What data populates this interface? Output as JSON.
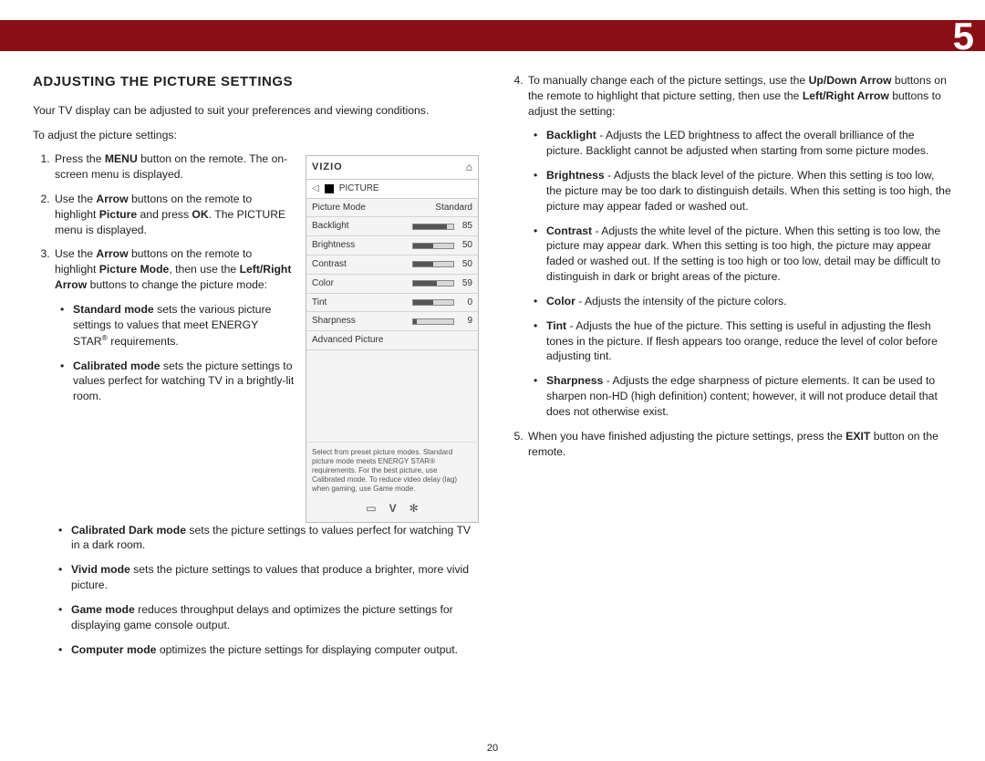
{
  "banner": {
    "chapter_number": "5",
    "background_color": "#8a0f14"
  },
  "page_number": "20",
  "heading": "ADJUSTING THE PICTURE SETTINGS",
  "intro": "Your TV display can be adjusted to suit your preferences and viewing conditions.",
  "lead_in": "To adjust the picture settings:",
  "steps_left": [
    {
      "pre": "Press the ",
      "bold1": "MENU",
      "post": " button on the remote. The on-screen menu is displayed."
    },
    {
      "pre": "Use the ",
      "bold1": "Arrow",
      "mid1": " buttons on the remote to highlight ",
      "bold2": "Picture",
      "mid2": " and press ",
      "bold3": "OK",
      "post": ". The PICTURE menu is displayed."
    },
    {
      "pre": "Use the ",
      "bold1": "Arrow",
      "mid1": " buttons on the remote to highlight ",
      "bold2": "Picture Mode",
      "mid2": ", then use the ",
      "bold3": "Left/Right Arrow",
      "post": " buttons to change the picture mode:"
    }
  ],
  "modes": [
    {
      "name": "Standard mode",
      "desc_pre": " sets the various picture settings to values that meet ENERGY STAR",
      "desc_post": " requirements."
    },
    {
      "name": "Calibrated mode",
      "desc": " sets the picture settings to values perfect for watching TV in a brightly-lit room."
    },
    {
      "name": "Calibrated Dark mode",
      "desc": " sets the picture settings to values perfect for watching TV in a dark room."
    },
    {
      "name": "Vivid mode",
      "desc": " sets the picture settings to values that produce a brighter, more vivid picture."
    },
    {
      "name": "Game mode",
      "desc": " reduces throughput delays and optimizes the picture settings for displaying game console output."
    },
    {
      "name": "Computer mode",
      "desc": " optimizes the picture settings for displaying computer output."
    }
  ],
  "step4": {
    "pre": "To manually change each of the picture settings, use the ",
    "bold1": "Up/Down Arrow",
    "mid1": " buttons on the remote to highlight that picture setting, then use the ",
    "bold2": "Left/Right Arrow",
    "post": " buttons to adjust the setting:"
  },
  "settings_defs": [
    {
      "name": "Backlight",
      "desc": " - Adjusts the LED brightness to affect the overall brilliance of the picture. Backlight cannot be adjusted when starting from some picture modes."
    },
    {
      "name": "Brightness",
      "desc": " - Adjusts the black level of the picture. When this setting is too low, the picture may be too dark to distinguish details. When this setting is too high, the picture may appear faded or washed out."
    },
    {
      "name": "Contrast",
      "desc": " - Adjusts the white level of the picture. When this setting is too low, the picture may appear dark. When this setting is too high, the picture may appear faded or washed out. If the setting is too high or too low, detail may be difficult to distinguish in dark or bright areas of the picture."
    },
    {
      "name": "Color",
      "desc": " - Adjusts the intensity of the picture colors."
    },
    {
      "name": "Tint",
      "desc": " - Adjusts the hue of the picture. This setting is useful in adjusting the flesh tones in the picture. If flesh appears too orange, reduce the level of color before adjusting tint."
    },
    {
      "name": "Sharpness",
      "desc": " - Adjusts the edge sharpness of picture elements. It can be used to sharpen non-HD (high definition) content; however, it will not produce detail that does not otherwise exist."
    }
  ],
  "step5": {
    "pre": "When you have finished adjusting the picture settings, press the ",
    "bold1": "EXIT",
    "post": " button on the remote."
  },
  "menu": {
    "logo": "VIZIO",
    "section": "PICTURE",
    "picture_mode_label": "Picture Mode",
    "picture_mode_value": "Standard",
    "rows": [
      {
        "label": "Backlight",
        "value": "85",
        "pct": 85
      },
      {
        "label": "Brightness",
        "value": "50",
        "pct": 50
      },
      {
        "label": "Contrast",
        "value": "50",
        "pct": 50
      },
      {
        "label": "Color",
        "value": "59",
        "pct": 59
      },
      {
        "label": "Tint",
        "value": "0",
        "pct": 50
      },
      {
        "label": "Sharpness",
        "value": "9",
        "pct": 9
      }
    ],
    "advanced": "Advanced Picture",
    "tip": "Select from preset picture modes. Standard picture mode meets ENERGY STAR® requirements. For the best picture, use Calibrated mode. To reduce video delay (lag) when gaming, use Game mode."
  }
}
